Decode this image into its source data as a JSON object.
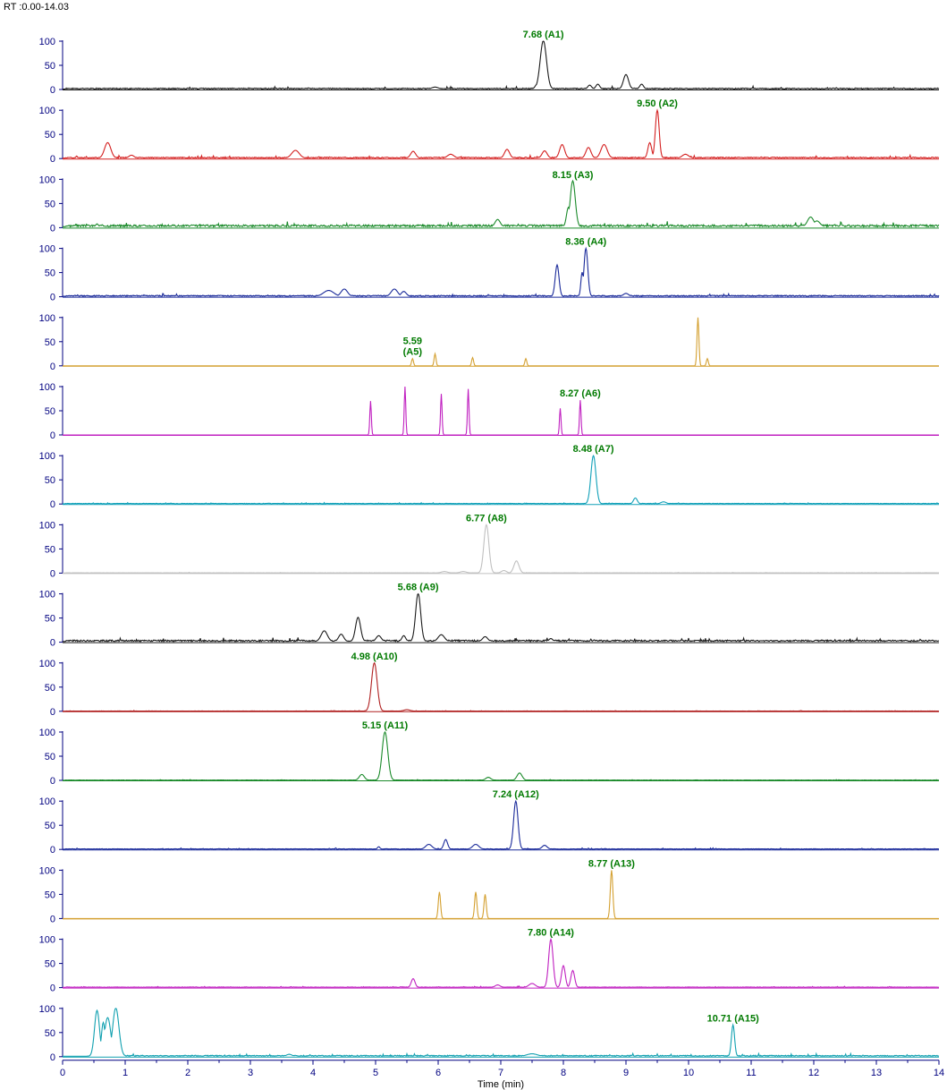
{
  "header": {
    "rt_range": "RT :0.00-14.03"
  },
  "chart_data": {
    "type": "line",
    "xlabel": "Time (min)",
    "xlim": [
      0,
      14
    ],
    "x_ticks": [
      "0",
      "1",
      "2",
      "3",
      "4",
      "5",
      "6",
      "7",
      "8",
      "9",
      "10",
      "11",
      "12",
      "13",
      "14"
    ],
    "y_ticks": [
      "0",
      "50",
      "100"
    ],
    "ylim": [
      0,
      100
    ],
    "grid": false,
    "panels": [
      {
        "color": "#1a1a1a",
        "noise": 2,
        "seed": 1,
        "peaks": [
          [
            7.68,
            100,
            0.05
          ],
          [
            7.58,
            10,
            0.03
          ],
          [
            8.42,
            8,
            0.03
          ],
          [
            8.55,
            10,
            0.03
          ],
          [
            9.0,
            30,
            0.04
          ],
          [
            9.25,
            10,
            0.03
          ],
          [
            5.95,
            4,
            0.05
          ]
        ],
        "labels": [
          {
            "x": 7.68,
            "y": 100,
            "lines": [
              "7.68 (A1)"
            ]
          }
        ]
      },
      {
        "color": "#d42020",
        "noise": 2,
        "seed": 2,
        "peaks": [
          [
            0.72,
            32,
            0.05
          ],
          [
            3.72,
            16,
            0.06
          ],
          [
            5.6,
            14,
            0.04
          ],
          [
            7.1,
            18,
            0.04
          ],
          [
            7.7,
            15,
            0.04
          ],
          [
            7.98,
            28,
            0.04
          ],
          [
            8.4,
            22,
            0.04
          ],
          [
            8.65,
            28,
            0.05
          ],
          [
            9.38,
            32,
            0.03
          ],
          [
            9.5,
            100,
            0.03
          ],
          [
            9.95,
            8,
            0.05
          ],
          [
            6.2,
            8,
            0.05
          ],
          [
            1.1,
            6,
            0.04
          ]
        ],
        "labels": [
          {
            "x": 9.5,
            "y": 100,
            "lines": [
              "9.50 (A2)"
            ]
          }
        ]
      },
      {
        "color": "#1a8a2a",
        "noise": 4,
        "seed": 3,
        "peaks": [
          [
            8.15,
            95,
            0.04
          ],
          [
            8.08,
            40,
            0.03
          ],
          [
            6.95,
            15,
            0.04
          ],
          [
            11.95,
            20,
            0.05
          ],
          [
            12.05,
            12,
            0.05
          ],
          [
            0.55,
            6,
            0.02
          ]
        ],
        "labels": [
          {
            "x": 8.15,
            "y": 95,
            "lines": [
              "8.15 (A3)"
            ]
          }
        ]
      },
      {
        "color": "#1a2a9a",
        "noise": 2,
        "seed": 4,
        "peaks": [
          [
            4.25,
            12,
            0.08
          ],
          [
            4.5,
            15,
            0.05
          ],
          [
            5.3,
            15,
            0.05
          ],
          [
            5.45,
            10,
            0.04
          ],
          [
            7.9,
            65,
            0.03
          ],
          [
            8.36,
            100,
            0.03
          ],
          [
            8.3,
            50,
            0.02
          ],
          [
            9.0,
            6,
            0.04
          ]
        ],
        "labels": [
          {
            "x": 8.36,
            "y": 100,
            "lines": [
              "8.36 (A4)"
            ]
          }
        ]
      },
      {
        "color": "#d4a030",
        "noise": 0,
        "seed": 5,
        "peaks": [
          [
            5.59,
            15,
            0.015
          ],
          [
            5.95,
            25,
            0.015
          ],
          [
            6.55,
            17,
            0.015
          ],
          [
            7.4,
            15,
            0.015
          ],
          [
            10.15,
            100,
            0.015
          ],
          [
            10.3,
            15,
            0.015
          ]
        ],
        "labels": [
          {
            "x": 5.59,
            "y": 15,
            "lines": [
              "5.59",
              "(A5)"
            ]
          }
        ]
      },
      {
        "color": "#c020c0",
        "noise": 0,
        "seed": 6,
        "peaks": [
          [
            4.92,
            70,
            0.012
          ],
          [
            5.47,
            100,
            0.012
          ],
          [
            6.05,
            85,
            0.012
          ],
          [
            6.48,
            95,
            0.012
          ],
          [
            7.95,
            55,
            0.012
          ],
          [
            8.27,
            72,
            0.012
          ]
        ],
        "labels": [
          {
            "x": 8.27,
            "y": 72,
            "lines": [
              "8.27 (A6)"
            ]
          }
        ]
      },
      {
        "color": "#10a0b8",
        "noise": 1,
        "seed": 7,
        "peaks": [
          [
            8.48,
            100,
            0.04
          ],
          [
            9.15,
            12,
            0.03
          ],
          [
            9.6,
            4,
            0.04
          ]
        ],
        "labels": [
          {
            "x": 8.48,
            "y": 100,
            "lines": [
              "8.48 (A7)"
            ]
          }
        ]
      },
      {
        "color": "#c0c0c0",
        "noise": 0.5,
        "seed": 8,
        "peaks": [
          [
            6.77,
            100,
            0.04
          ],
          [
            7.25,
            25,
            0.04
          ],
          [
            7.05,
            5,
            0.04
          ],
          [
            6.4,
            3,
            0.05
          ],
          [
            6.1,
            3,
            0.05
          ]
        ],
        "labels": [
          {
            "x": 6.77,
            "y": 100,
            "lines": [
              "6.77 (A8)"
            ]
          }
        ]
      },
      {
        "color": "#1a1a1a",
        "noise": 3,
        "seed": 9,
        "peaks": [
          [
            4.18,
            22,
            0.05
          ],
          [
            4.45,
            15,
            0.04
          ],
          [
            4.72,
            50,
            0.04
          ],
          [
            5.05,
            12,
            0.04
          ],
          [
            5.45,
            12,
            0.03
          ],
          [
            5.68,
            100,
            0.04
          ],
          [
            6.05,
            14,
            0.05
          ],
          [
            6.75,
            10,
            0.04
          ],
          [
            7.8,
            6,
            0.03
          ]
        ],
        "labels": [
          {
            "x": 5.68,
            "y": 100,
            "lines": [
              "5.68 (A9)"
            ]
          }
        ]
      },
      {
        "color": "#b02020",
        "noise": 0.5,
        "seed": 10,
        "peaks": [
          [
            4.98,
            100,
            0.045
          ],
          [
            5.5,
            3,
            0.05
          ]
        ],
        "labels": [
          {
            "x": 4.98,
            "y": 100,
            "lines": [
              "4.98 (A10)"
            ]
          }
        ]
      },
      {
        "color": "#1a8a2a",
        "noise": 0.5,
        "seed": 11,
        "peaks": [
          [
            5.15,
            100,
            0.045
          ],
          [
            4.78,
            12,
            0.04
          ],
          [
            6.8,
            6,
            0.04
          ],
          [
            7.3,
            15,
            0.04
          ]
        ],
        "labels": [
          {
            "x": 5.15,
            "y": 100,
            "lines": [
              "5.15 (A11)"
            ]
          }
        ]
      },
      {
        "color": "#1a2a9a",
        "noise": 1,
        "seed": 12,
        "peaks": [
          [
            7.24,
            100,
            0.035
          ],
          [
            5.85,
            10,
            0.05
          ],
          [
            6.12,
            20,
            0.03
          ],
          [
            6.6,
            10,
            0.05
          ],
          [
            7.7,
            8,
            0.04
          ],
          [
            5.05,
            5,
            0.02
          ]
        ],
        "labels": [
          {
            "x": 7.24,
            "y": 100,
            "lines": [
              "7.24 (A12)"
            ]
          }
        ]
      },
      {
        "color": "#d4a030",
        "noise": 0,
        "seed": 13,
        "peaks": [
          [
            6.02,
            55,
            0.018
          ],
          [
            6.6,
            55,
            0.018
          ],
          [
            6.75,
            50,
            0.018
          ],
          [
            8.77,
            100,
            0.02
          ]
        ],
        "labels": [
          {
            "x": 8.77,
            "y": 100,
            "lines": [
              "8.77 (A13)"
            ]
          }
        ]
      },
      {
        "color": "#c020c0",
        "noise": 1,
        "seed": 14,
        "peaks": [
          [
            5.6,
            18,
            0.03
          ],
          [
            7.8,
            100,
            0.035
          ],
          [
            8.0,
            45,
            0.03
          ],
          [
            8.15,
            35,
            0.03
          ],
          [
            7.5,
            8,
            0.05
          ],
          [
            6.95,
            5,
            0.04
          ]
        ],
        "labels": [
          {
            "x": 7.8,
            "y": 100,
            "lines": [
              "7.80 (A14)"
            ]
          }
        ]
      },
      {
        "color": "#10a0b0",
        "noise": 2,
        "seed": 15,
        "peaks": [
          [
            0.55,
            95,
            0.04
          ],
          [
            0.72,
            80,
            0.05
          ],
          [
            0.85,
            100,
            0.05
          ],
          [
            0.65,
            70,
            0.03
          ],
          [
            10.71,
            65,
            0.025
          ],
          [
            7.5,
            5,
            0.08
          ],
          [
            3.62,
            4,
            0.04
          ]
        ],
        "labels": [
          {
            "x": 10.71,
            "y": 65,
            "lines": [
              "10.71 (A15)"
            ]
          }
        ]
      }
    ]
  }
}
